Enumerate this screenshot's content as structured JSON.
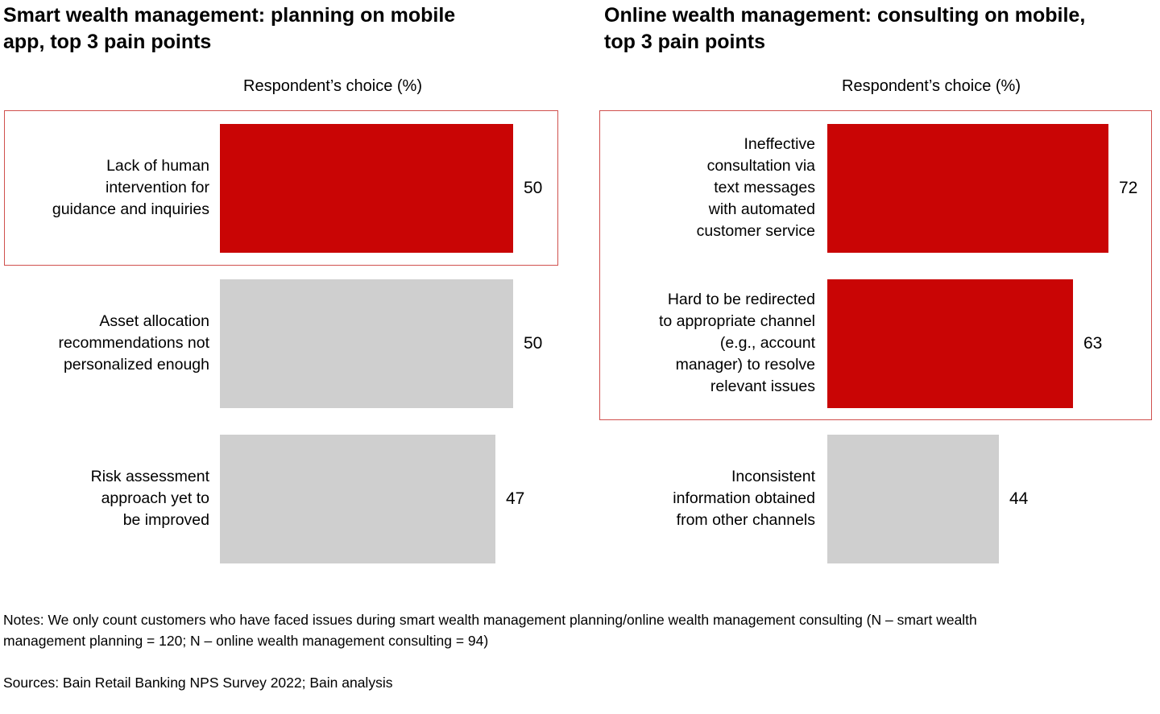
{
  "colors": {
    "bar_red": "#c90505",
    "bar_gray": "#cfcfcf",
    "highlight_border": "#d0504d",
    "text": "#000000",
    "background": "#ffffff"
  },
  "chart_data": [
    {
      "type": "bar",
      "orientation": "horizontal",
      "title": "Smart wealth management: planning on mobile\napp, top 3 pain points",
      "value_axis_label": "Respondent’s choice (%)",
      "unit": "%",
      "grid": false,
      "legend": false,
      "bars_scaled_to": "chart max value",
      "categories": [
        "Lack of human intervention for guidance and inquiries",
        "Asset allocation recommendations not personalized enough",
        "Risk assessment approach yet to be improved"
      ],
      "categories_display": [
        "Lack of human\nintervention for\nguidance and inquiries",
        "Asset allocation\nrecommendations not\npersonalized enough",
        "Risk assessment\napproach yet to\nbe improved"
      ],
      "values": [
        50,
        50,
        47
      ],
      "value_labels": [
        "50",
        "50",
        "47"
      ],
      "bar_colors": [
        "#c90505",
        "#cfcfcf",
        "#cfcfcf"
      ],
      "highlighted_rows": [
        0
      ]
    },
    {
      "type": "bar",
      "orientation": "horizontal",
      "title": "Online wealth management: consulting on mobile,\ntop 3 pain points",
      "value_axis_label": "Respondent’s choice (%)",
      "unit": "%",
      "grid": false,
      "legend": false,
      "bars_scaled_to": "chart max value",
      "categories": [
        "Ineffective consultation via text messages with automated customer service",
        "Hard to be redirected to appropriate channel (e.g., account manager) to resolve relevant issues",
        "Inconsistent information obtained from other channels"
      ],
      "categories_display": [
        "Ineffective\nconsultation via\ntext messages\nwith automated\ncustomer service",
        "Hard to be redirected\nto appropriate channel\n(e.g., account\nmanager) to resolve\nrelevant issues",
        "Inconsistent\ninformation obtained\nfrom other channels"
      ],
      "values": [
        72,
        63,
        44
      ],
      "value_labels": [
        "72",
        "63",
        "44"
      ],
      "bar_colors": [
        "#c90505",
        "#c90505",
        "#cfcfcf"
      ],
      "highlighted_rows": [
        0,
        1
      ]
    }
  ],
  "footer": {
    "notes": "Notes: We only count customers who have faced issues during smart wealth management planning/online wealth management consulting (N – smart wealth\nmanagement planning = 120; N – online wealth management consulting = 94)",
    "sources": "Sources: Bain Retail Banking NPS Survey 2022; Bain analysis"
  }
}
